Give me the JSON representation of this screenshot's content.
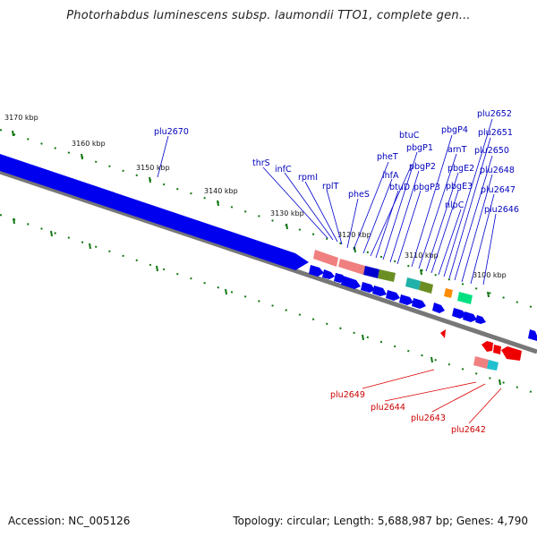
{
  "title": "Photorhabdus luminescens subsp. laumondii TTO1, complete gen...",
  "footer": {
    "accession": "Accession: NC_005126",
    "summary": "Topology: circular; Length: 5,688,987 bp; Genes: 4,790"
  },
  "colors": {
    "forward_gene": "#0000ee",
    "reverse_gene": "#ee0000",
    "ruler_tick": "#117711",
    "backbone": "#777777",
    "label_forward": "#0000bb",
    "label_reverse": "#cc0000"
  },
  "ruler_labels": [
    "3170 kbp",
    "3160 kbp",
    "3150 kbp",
    "3140 kbp",
    "3130 kbp",
    "3120 kbp",
    "3110 kbp",
    "3100 kbp"
  ],
  "forward_labels": [
    "plu2670",
    "thrS",
    "infC",
    "rpmI",
    "rplT",
    "pheS",
    "pheT",
    "ihfA",
    "btuC",
    "btuD",
    "pbgP1",
    "pbgP2",
    "pbgP3",
    "pbgP4",
    "arnT",
    "pbgE2",
    "pbgE3",
    "nlpC",
    "plu2652",
    "plu2651",
    "plu2650",
    "plu2648",
    "plu2647",
    "plu2646"
  ],
  "reverse_labels": [
    "plu2649",
    "plu2644",
    "plu2643",
    "plu2642"
  ]
}
